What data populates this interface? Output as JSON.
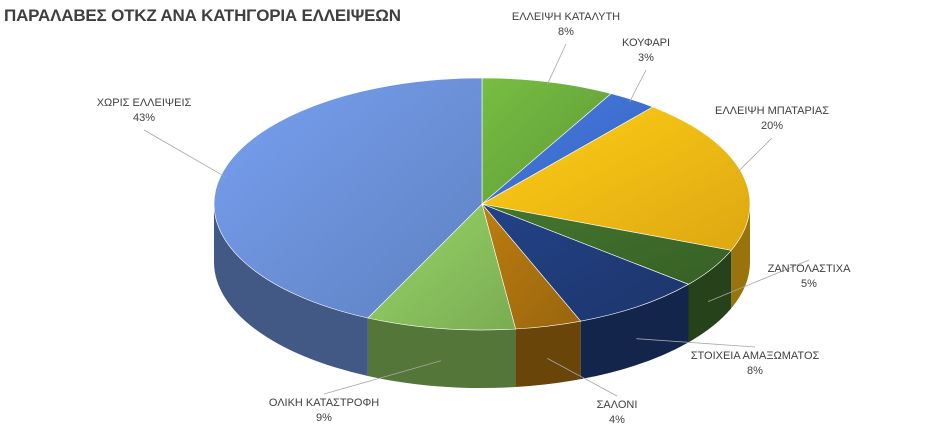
{
  "chart_data": {
    "type": "pie",
    "title": "ΠΑΡΑΛΑΒΕΣ ΟΤΚΖ ΑΝΑ ΚΑΤΗΓΟΡΙΑ ΕΛΛΕΙΨΕΩΝ",
    "slices": [
      {
        "label": "ΕΛΛΕΙΨΗ ΚΑΤΑΛΥΤΗ",
        "value": 8,
        "display": "8%",
        "color": "#6aaa3c"
      },
      {
        "label": "ΚΟΥΦΑΡΙ",
        "value": 3,
        "display": "3%",
        "color": "#3e6fcf"
      },
      {
        "label": "ΕΛΛΕΙΨΗ ΜΠΑΤΑΡΙΑΣ",
        "value": 20,
        "display": "20%",
        "color": "#f6b914"
      },
      {
        "label": "ΖΑΝΤΟΛΑΣΤΙΧΑ",
        "value": 5,
        "display": "5%",
        "color": "#3d6a2a"
      },
      {
        "label": "ΣΤΟΙΧΕΙΑ ΑΜΑΞΩΜΑΤΟΣ",
        "value": 8,
        "display": "8%",
        "color": "#1f3b78"
      },
      {
        "label": "ΣΑΛΟΝΙ",
        "value": 4,
        "display": "4%",
        "color": "#a9700e"
      },
      {
        "label": "ΟΛΙΚΗ ΚΑΤΑΣΤΡΟΦΗ",
        "value": 9,
        "display": "9%",
        "color": "#88bf5c"
      },
      {
        "label": "ΧΩΡΙΣ ΕΛΛΕΙΨΕΙΣ",
        "value": 43,
        "display": "43%",
        "color": "#6a8fd6"
      }
    ],
    "legend": "none"
  }
}
